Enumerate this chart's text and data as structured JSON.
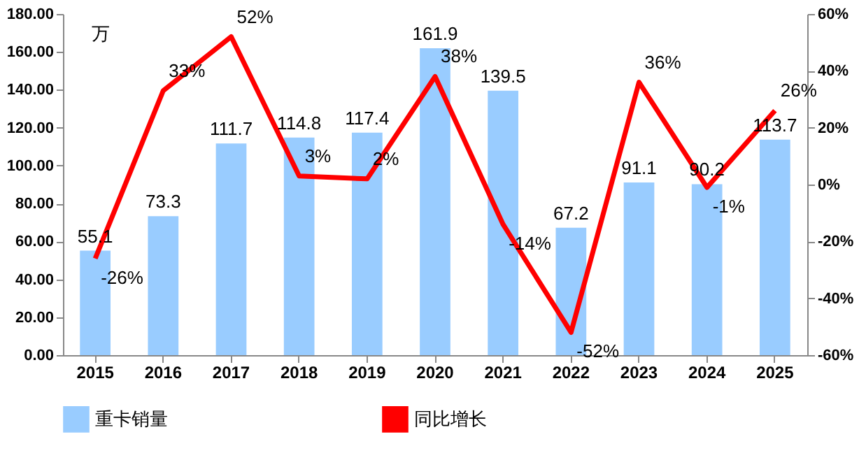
{
  "chart_data": {
    "type": "bar",
    "ylabel": "万",
    "categories": [
      "2015",
      "2016",
      "2017",
      "2018",
      "2019",
      "2020",
      "2021",
      "2022",
      "2023",
      "2024",
      "2025"
    ],
    "series": [
      {
        "name": "重卡销量",
        "color": "#99ccff",
        "values": [
          55.1,
          73.3,
          111.7,
          114.8,
          117.4,
          161.9,
          139.5,
          67.2,
          91.1,
          90.2,
          113.7
        ],
        "value_labels": [
          "55.1",
          "73.3",
          "111.7",
          "114.8",
          "117.4",
          "161.9",
          "139.5",
          "67.2",
          "91.1",
          "90.2",
          "113.7"
        ]
      },
      {
        "name": "同比增长",
        "type": "line",
        "axis": "y2",
        "color": "#ff0000",
        "values": [
          -26,
          33,
          52,
          3,
          2,
          38,
          -14,
          -52,
          36,
          -1,
          26
        ],
        "value_labels": [
          "-26%",
          "33%",
          "52%",
          "3%",
          "2%",
          "38%",
          "-14%",
          "-52%",
          "36%",
          "-1%",
          "26%"
        ]
      }
    ],
    "ylim": [
      0,
      180
    ],
    "yticks": [
      {
        "value": 0,
        "label": "0.00"
      },
      {
        "value": 20,
        "label": "20.00"
      },
      {
        "value": 40,
        "label": "40.00"
      },
      {
        "value": 60,
        "label": "60.00"
      },
      {
        "value": 80,
        "label": "80.00"
      },
      {
        "value": 100,
        "label": "100.00"
      },
      {
        "value": 120,
        "label": "120.00"
      },
      {
        "value": 140,
        "label": "140.00"
      },
      {
        "value": 160,
        "label": "160.00"
      },
      {
        "value": 180,
        "label": "180.00"
      }
    ],
    "y2lim": [
      -60,
      60
    ],
    "y2ticks": [
      {
        "value": -60,
        "label": "-60%"
      },
      {
        "value": -40,
        "label": "-40%"
      },
      {
        "value": -20,
        "label": "-20%"
      },
      {
        "value": 0,
        "label": "0%"
      },
      {
        "value": 20,
        "label": "20%"
      },
      {
        "value": 40,
        "label": "40%"
      },
      {
        "value": 60,
        "label": "60%"
      }
    ],
    "grid": false,
    "legend": "bottom"
  }
}
